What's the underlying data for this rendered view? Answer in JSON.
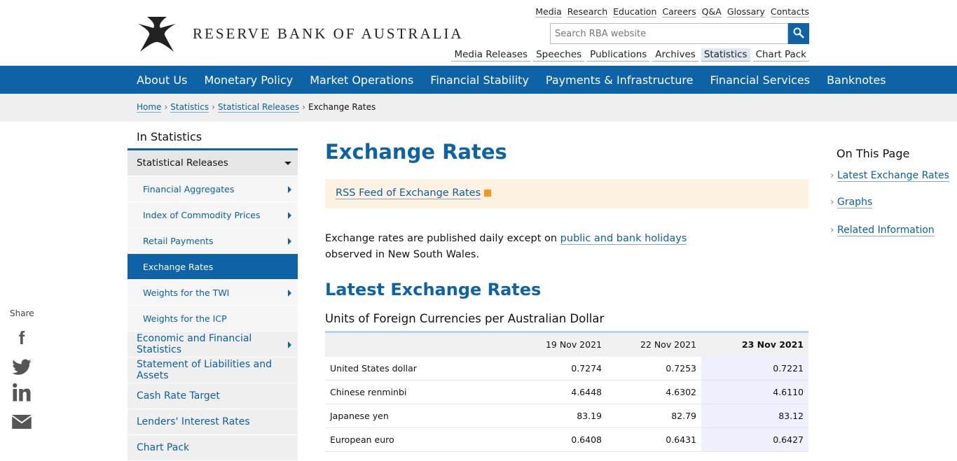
{
  "header": {
    "logo_text": "RESERVE BANK OF AUSTRALIA",
    "utility_links": [
      "Media",
      "Research",
      "Education",
      "Careers",
      "Q&A",
      "Glossary",
      "Contacts"
    ],
    "search_placeholder": "Search RBA website",
    "section_links": [
      "Media Releases",
      "Speeches",
      "Publications",
      "Archives",
      "Statistics",
      "Chart Pack"
    ],
    "active_section": "Statistics"
  },
  "nav": [
    "About Us",
    "Monetary Policy",
    "Market Operations",
    "Financial Stability",
    "Payments & Infrastructure",
    "Financial Services",
    "Banknotes"
  ],
  "breadcrumb": [
    "Home",
    "Statistics",
    "Statistical Releases",
    "Exchange Rates"
  ],
  "sidebar": {
    "title": "In Statistics",
    "group": "Statistical Releases",
    "sub_items": [
      "Financial Aggregates",
      "Index of Commodity Prices",
      "Retail Payments",
      "Exchange Rates",
      "Weights for the TWI",
      "Weights for the ICP"
    ],
    "items": [
      "Economic and Financial Statistics",
      "Statement of Liabilities and Assets",
      "Cash Rate Target",
      "Lenders' Interest Rates",
      "Chart Pack"
    ]
  },
  "share": {
    "label": "Share",
    "icons": [
      "facebook-icon",
      "twitter-icon",
      "linkedin-icon",
      "email-icon"
    ]
  },
  "main": {
    "title": "Exchange Rates",
    "rss": "RSS Feed of Exchange Rates",
    "intro_before": "Exchange rates are published daily except on ",
    "intro_link": "public and bank holidays",
    "intro_after": " observed in New South Wales.",
    "h2": "Latest Exchange Rates",
    "caption": "Units of Foreign Currencies per Australian Dollar",
    "table": {
      "headers": [
        "",
        "19 Nov 2021",
        "22 Nov 2021",
        "23 Nov 2021"
      ],
      "rows": [
        [
          "United States dollar",
          "0.7274",
          "0.7253",
          "0.7221"
        ],
        [
          "Chinese renminbi",
          "4.6448",
          "4.6302",
          "4.6110"
        ],
        [
          "Japanese yen",
          "83.19",
          "82.79",
          "83.12"
        ],
        [
          "European euro",
          "0.6408",
          "0.6431",
          "0.6427"
        ]
      ]
    }
  },
  "on_this_page": {
    "title": "On This Page",
    "links": [
      "Latest Exchange Rates",
      "Graphs",
      "Related Information"
    ]
  },
  "colors": {
    "brand": "#0d63a5",
    "rss_bg": "#fdf1e2",
    "highlight_col": "#eef0fd"
  }
}
